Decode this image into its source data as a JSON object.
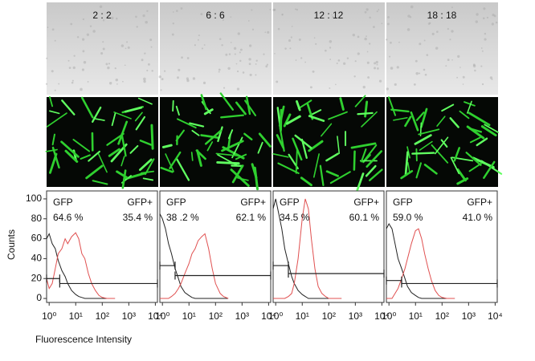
{
  "chart_data": [
    {
      "type": "line",
      "title": "2 : 2",
      "ylabel": "Counts",
      "xlabel": "Fluorescence Intensity",
      "log_x": true,
      "xlim": [
        0.8,
        12000
      ],
      "ylim": [
        -4,
        108
      ],
      "xticks": [
        {
          "value": 1,
          "label": "10⁰"
        },
        {
          "value": 10,
          "label": "10¹"
        },
        {
          "value": 100,
          "label": "10²"
        },
        {
          "value": 1000,
          "label": "10³"
        },
        {
          "value": 10000,
          "label": "10⁴"
        }
      ],
      "yticks": [
        0,
        20,
        40,
        60,
        80,
        100
      ],
      "x": [
        0.8,
        1,
        1.3,
        1.7,
        2.2,
        3,
        4,
        5,
        7,
        10,
        13,
        17,
        22,
        30,
        40,
        55,
        75,
        100,
        150,
        200,
        300
      ],
      "series": [
        {
          "color": "#222222",
          "values": [
            60,
            65,
            55,
            50,
            38,
            28,
            22,
            15,
            8,
            4,
            2,
            1,
            0,
            0,
            0,
            0,
            0,
            0,
            0,
            0,
            0
          ]
        },
        {
          "color": "#e05050",
          "values": [
            20,
            10,
            15,
            30,
            45,
            50,
            60,
            55,
            62,
            66,
            60,
            45,
            40,
            25,
            15,
            8,
            3,
            1,
            0,
            0,
            0
          ]
        }
      ],
      "gates": [
        {
          "name": "GFP",
          "label": "64.6 %",
          "x": [
            0.8,
            2.5
          ],
          "y": 20
        },
        {
          "name": "GFP+",
          "label": "35.4 %",
          "x": [
            2.5,
            12000
          ],
          "y": 15
        }
      ]
    },
    {
      "type": "line",
      "title": "6 : 6",
      "log_x": true,
      "xlim": [
        0.8,
        12000
      ],
      "ylim": [
        -4,
        108
      ],
      "xticks": [
        {
          "value": 1,
          "label": "10⁰"
        },
        {
          "value": 10,
          "label": "10¹"
        },
        {
          "value": 100,
          "label": "10²"
        },
        {
          "value": 1000,
          "label": "10³"
        },
        {
          "value": 10000,
          "label": "10⁴"
        }
      ],
      "x": [
        0.8,
        1,
        1.3,
        1.7,
        2.2,
        3,
        4,
        5,
        7,
        10,
        13,
        17,
        22,
        30,
        40,
        55,
        75,
        100,
        150,
        200,
        300
      ],
      "series": [
        {
          "color": "#222222",
          "values": [
            85,
            80,
            70,
            55,
            45,
            30,
            20,
            12,
            6,
            3,
            1,
            0,
            0,
            0,
            0,
            0,
            0,
            0,
            0,
            0,
            0
          ]
        },
        {
          "color": "#e05050",
          "values": [
            0,
            0,
            0,
            0,
            2,
            5,
            10,
            15,
            25,
            35,
            45,
            50,
            58,
            62,
            65,
            50,
            30,
            15,
            5,
            2,
            0
          ]
        }
      ],
      "gates": [
        {
          "name": "GFP",
          "label": "38 .2 %",
          "x": [
            0.8,
            3
          ],
          "y": 33
        },
        {
          "name": "GFP+",
          "label": "62.1 %",
          "x": [
            3,
            12000
          ],
          "y": 23
        }
      ]
    },
    {
      "type": "line",
      "title": "12 : 12",
      "log_x": true,
      "xlim": [
        0.8,
        12000
      ],
      "ylim": [
        -4,
        108
      ],
      "xticks": [
        {
          "value": 1,
          "label": "10⁰"
        },
        {
          "value": 10,
          "label": "10¹"
        },
        {
          "value": 100,
          "label": "10²"
        },
        {
          "value": 1000,
          "label": "10³"
        },
        {
          "value": 10000,
          "label": "10⁴"
        }
      ],
      "x": [
        0.8,
        1,
        1.3,
        1.7,
        2.2,
        3,
        4,
        5,
        7,
        10,
        13,
        17,
        22,
        30,
        40,
        55,
        75,
        100,
        150,
        200,
        300
      ],
      "series": [
        {
          "color": "#222222",
          "values": [
            90,
            100,
            85,
            70,
            50,
            35,
            22,
            15,
            8,
            4,
            2,
            0,
            0,
            0,
            0,
            0,
            0,
            0,
            0,
            0,
            0
          ]
        },
        {
          "color": "#e05050",
          "values": [
            0,
            0,
            0,
            0,
            0,
            2,
            5,
            15,
            40,
            80,
            100,
            90,
            60,
            30,
            12,
            5,
            2,
            0,
            0,
            0,
            0
          ]
        }
      ],
      "gates": [
        {
          "name": "GFP",
          "label": "34.5 %",
          "x": [
            0.8,
            3
          ],
          "y": 33
        },
        {
          "name": "GFP+",
          "label": "60.1 %",
          "x": [
            3,
            12000
          ],
          "y": 25
        }
      ]
    },
    {
      "type": "line",
      "title": "18 : 18",
      "log_x": true,
      "xlim": [
        0.8,
        12000
      ],
      "ylim": [
        -4,
        108
      ],
      "xticks": [
        {
          "value": 1,
          "label": "10⁰"
        },
        {
          "value": 10,
          "label": "10¹"
        },
        {
          "value": 100,
          "label": "10²"
        },
        {
          "value": 1000,
          "label": "10³"
        },
        {
          "value": 10000,
          "label": "10⁴"
        }
      ],
      "x": [
        0.8,
        1,
        1.3,
        1.7,
        2.2,
        3,
        4,
        5,
        7,
        10,
        13,
        17,
        22,
        30,
        40,
        55,
        75,
        100,
        150,
        200,
        300
      ],
      "series": [
        {
          "color": "#222222",
          "values": [
            70,
            75,
            70,
            55,
            40,
            30,
            20,
            12,
            6,
            3,
            1,
            0,
            0,
            0,
            0,
            0,
            0,
            0,
            0,
            0,
            0
          ]
        },
        {
          "color": "#e05050",
          "values": [
            0,
            0,
            0,
            5,
            10,
            20,
            30,
            40,
            55,
            68,
            70,
            60,
            45,
            30,
            18,
            8,
            3,
            1,
            0,
            0,
            0
          ]
        }
      ],
      "gates": [
        {
          "name": "GFP",
          "label": "59.0 %",
          "x": [
            0.8,
            3
          ],
          "y": 18
        },
        {
          "name": "GFP+",
          "label": "41.0 %",
          "x": [
            3,
            12000
          ],
          "y": 15
        }
      ]
    }
  ]
}
